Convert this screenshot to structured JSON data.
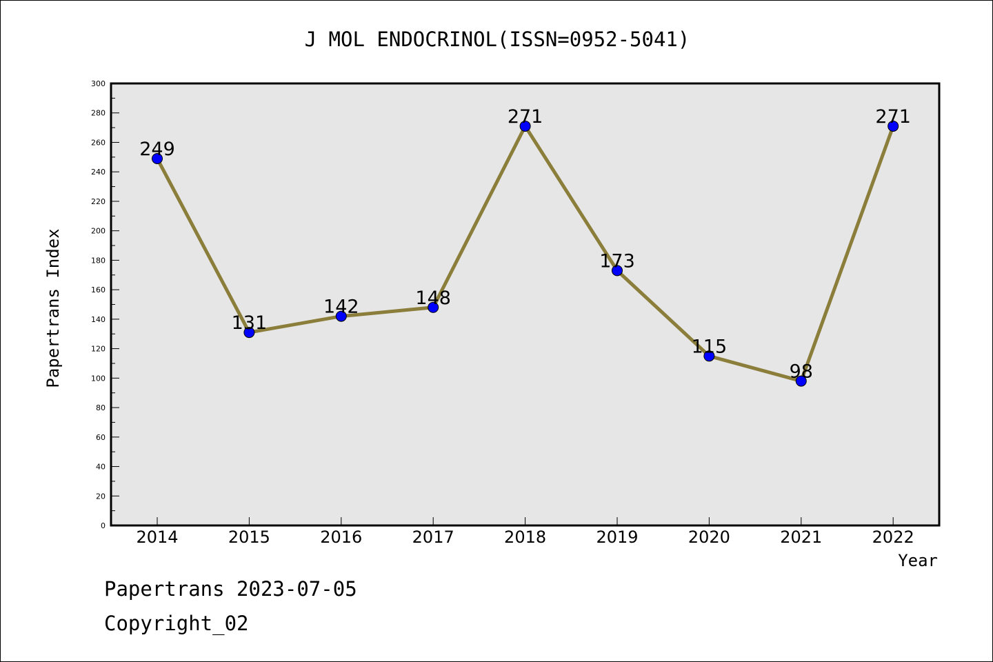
{
  "chart_data": {
    "type": "line",
    "title": "J MOL ENDOCRINOL(ISSN=0952-5041)",
    "xlabel": "Year",
    "ylabel": "Papertrans Index",
    "categories": [
      "2014",
      "2015",
      "2016",
      "2017",
      "2018",
      "2019",
      "2020",
      "2021",
      "2022"
    ],
    "values": [
      249,
      131,
      142,
      148,
      271,
      173,
      115,
      98,
      271
    ],
    "ylim": [
      0,
      300
    ],
    "yticks": [
      0,
      20,
      40,
      60,
      80,
      100,
      120,
      140,
      160,
      180,
      200,
      220,
      240,
      260,
      280,
      300
    ],
    "grid": false,
    "legend": "none",
    "colors": {
      "line": "#8b7d3a",
      "marker": "#0000ff",
      "plot_background": "#e6e6e6"
    }
  },
  "footer": {
    "source": "Papertrans 2023-07-05",
    "copyright": "Copyright_02"
  }
}
